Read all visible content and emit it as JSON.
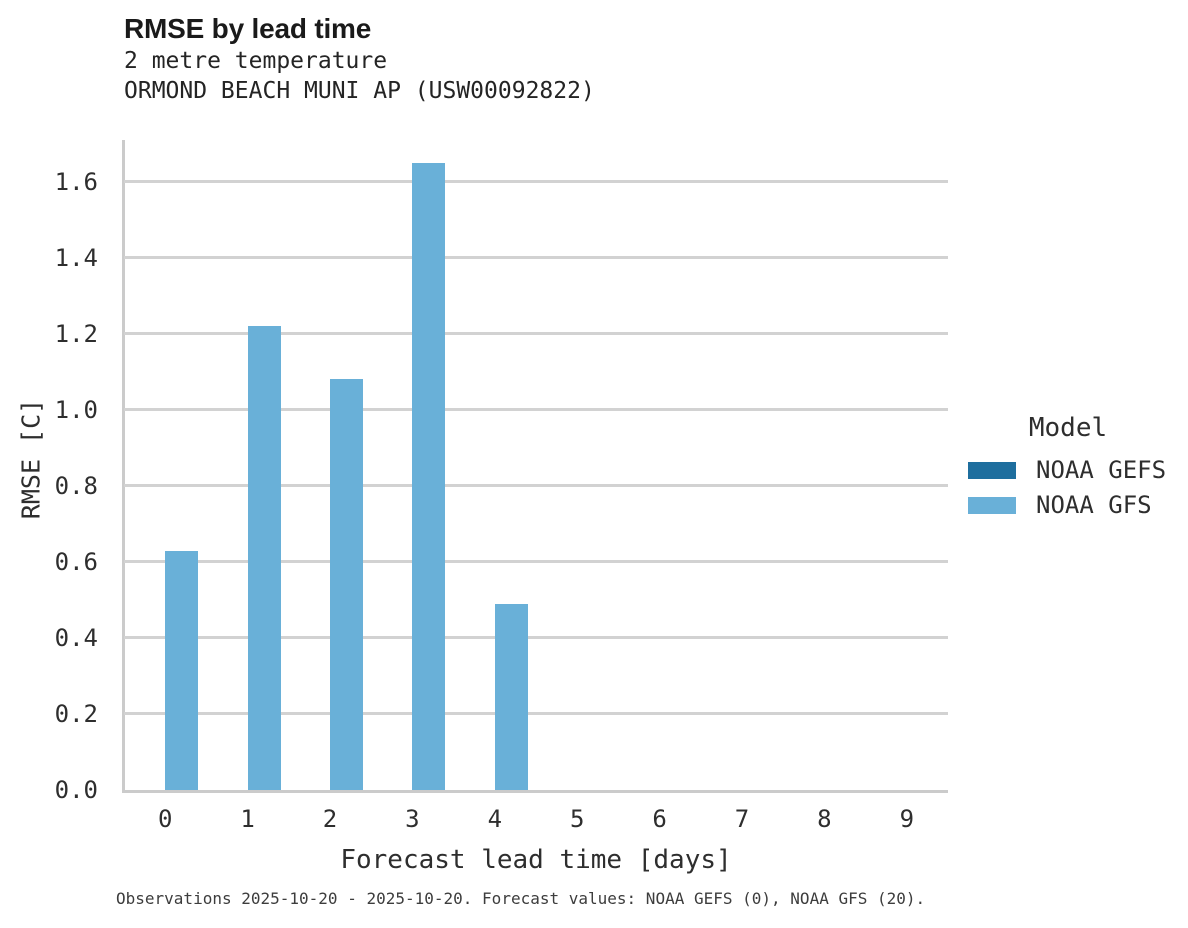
{
  "header": {
    "title": "RMSE by lead time",
    "subtitle1": "2 metre temperature",
    "subtitle2": "ORMOND BEACH MUNI AP (USW00092822)"
  },
  "legend": {
    "title": "Model",
    "items": [
      {
        "label": "NOAA GEFS",
        "color": "#1e6e9e"
      },
      {
        "label": "NOAA GFS",
        "color": "#69b0d8"
      }
    ]
  },
  "footer": {
    "text": "Observations 2025-10-20 - 2025-10-20. Forecast values: NOAA GEFS (0), NOAA GFS (20)."
  },
  "chart_data": {
    "type": "bar",
    "title": "RMSE by lead time",
    "subtitle": [
      "2 metre temperature",
      "ORMOND BEACH MUNI AP (USW00092822)"
    ],
    "xlabel": "Forecast lead time [days]",
    "ylabel": "RMSE [C]",
    "categories": [
      0,
      1,
      2,
      3,
      4,
      5,
      6,
      7,
      8,
      9
    ],
    "series": [
      {
        "name": "NOAA GEFS",
        "color": "#1e6e9e",
        "values": [
          null,
          null,
          null,
          null,
          null,
          null,
          null,
          null,
          null,
          null
        ]
      },
      {
        "name": "NOAA GFS",
        "color": "#69b0d8",
        "values": [
          0.63,
          1.22,
          1.08,
          1.65,
          0.49,
          null,
          null,
          null,
          null,
          null
        ]
      }
    ],
    "ylim": [
      0,
      1.71
    ],
    "ytick_step": 0.2,
    "ytick_max": 1.6,
    "grid": true,
    "legend_position": "right",
    "legend_title": "Model"
  }
}
